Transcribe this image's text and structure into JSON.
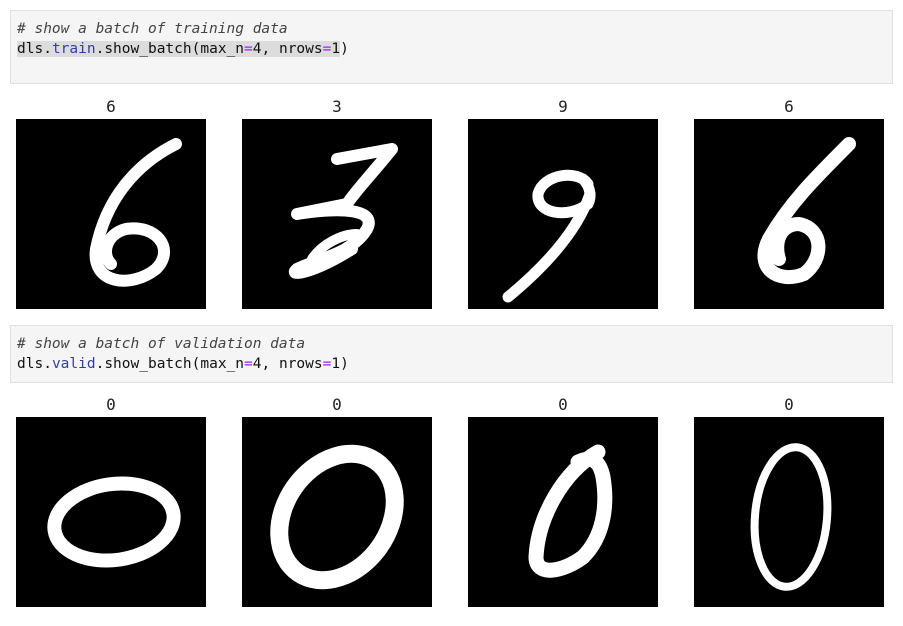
{
  "cells": [
    {
      "comment": "# show a batch of training data",
      "code": {
        "obj": "dls",
        "dot1": ".",
        "attr1": "train",
        "dot2": ".",
        "method": "show_batch",
        "args_open": "(max_n",
        "eq1": "=",
        "n": "4",
        "sep": ", nrows",
        "eq2": "=",
        "rows": "1",
        "close": ")"
      },
      "labels": [
        "6",
        "3",
        "9",
        "6"
      ]
    },
    {
      "comment": "# show a batch of validation data",
      "code": {
        "obj": "dls",
        "dot1": ".",
        "attr1": "valid",
        "dot2": ".",
        "method": "show_batch",
        "args_open": "(max_n",
        "eq1": "=",
        "n": "4",
        "sep": ", nrows",
        "eq2": "=",
        "rows": "1",
        "close": ")"
      },
      "labels": [
        "0",
        "0",
        "0",
        "0"
      ]
    }
  ]
}
